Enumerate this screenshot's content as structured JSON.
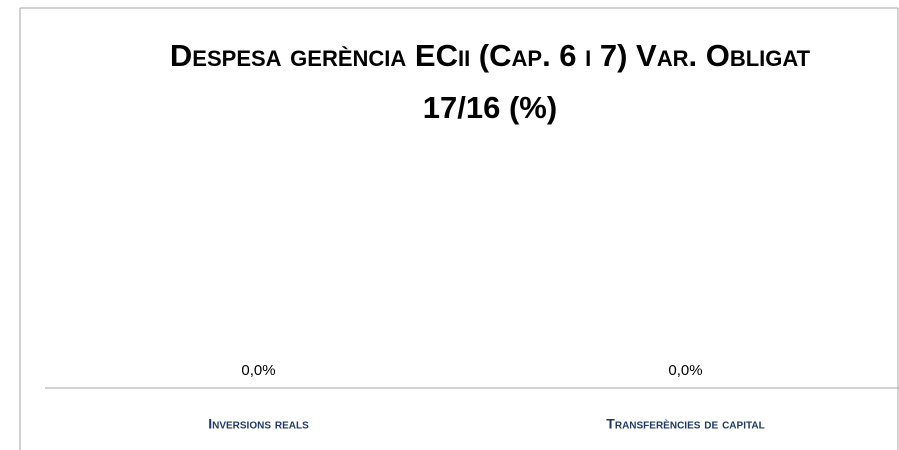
{
  "chart_data": {
    "type": "bar",
    "title": "Despesa gerència ECii (Cap. 6 i 7) Var. Obligat 17/16 (%)",
    "categories": [
      "Inversions reals",
      "Transferències de capital"
    ],
    "values": [
      0,
      0
    ],
    "value_labels": [
      "0,0%",
      "0,0%"
    ],
    "color": "#4472c4"
  }
}
